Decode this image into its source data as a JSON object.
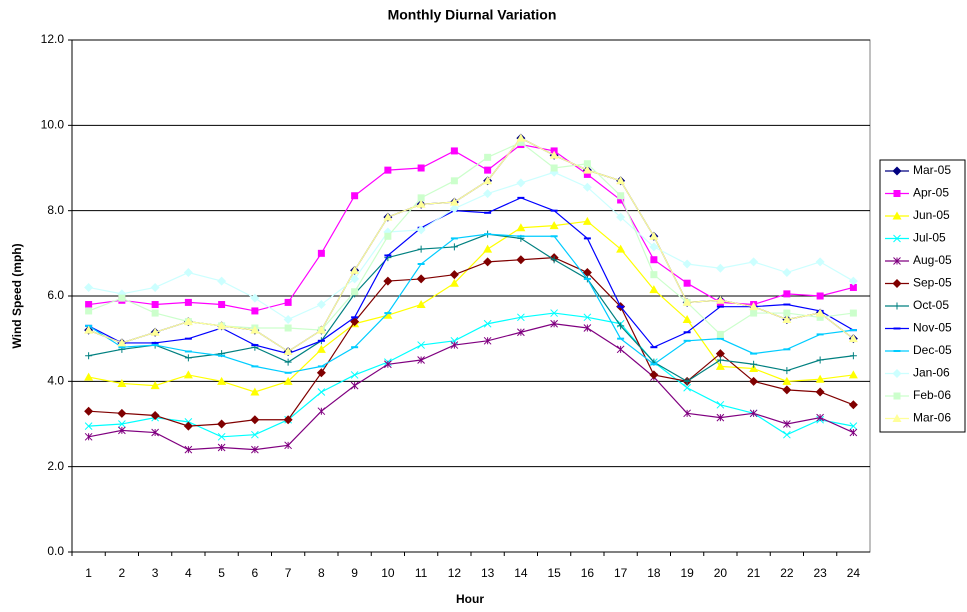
{
  "chart_data": {
    "type": "line",
    "title": "Monthly Diurnal Variation",
    "x_label": "Hour",
    "y_label": "Wind Speed (mph)",
    "categories": [
      "1",
      "2",
      "3",
      "4",
      "5",
      "6",
      "7",
      "8",
      "9",
      "10",
      "11",
      "12",
      "13",
      "14",
      "15",
      "16",
      "17",
      "18",
      "19",
      "20",
      "21",
      "22",
      "23",
      "24"
    ],
    "ylim": [
      0,
      12
    ],
    "yticks": [
      {
        "value": 0,
        "label": "0.0"
      },
      {
        "value": 2,
        "label": "2.0"
      },
      {
        "value": 4,
        "label": "4.0"
      },
      {
        "value": 6,
        "label": "6.0"
      },
      {
        "value": 8,
        "label": "8.0"
      },
      {
        "value": 10,
        "label": "10.0"
      },
      {
        "value": 12,
        "label": "12.0"
      }
    ],
    "grid": true,
    "legend": "right",
    "series": [
      {
        "name": "Mar-05",
        "color": "#000080",
        "marker": "diamond",
        "values": [
          5.2,
          4.9,
          5.15,
          5.4,
          5.3,
          5.2,
          4.7,
          5.2,
          6.6,
          7.85,
          8.15,
          8.2,
          8.7,
          9.7,
          9.3,
          8.95,
          8.7,
          7.4,
          5.85,
          5.9,
          5.75,
          5.45,
          5.6,
          5.0
        ]
      },
      {
        "name": "Apr-05",
        "color": "#ff00ff",
        "marker": "square",
        "values": [
          5.8,
          5.9,
          5.8,
          5.85,
          5.8,
          5.65,
          5.85,
          7.0,
          8.35,
          8.95,
          9.0,
          9.4,
          8.95,
          9.55,
          9.4,
          8.85,
          8.25,
          6.85,
          6.3,
          5.85,
          5.8,
          6.05,
          6.0,
          6.2
        ]
      },
      {
        "name": "Jun-05",
        "color": "#ffff00",
        "marker": "triangle",
        "values": [
          4.1,
          3.95,
          3.9,
          4.15,
          4.0,
          3.75,
          4.0,
          4.75,
          5.35,
          5.55,
          5.8,
          6.3,
          7.1,
          7.6,
          7.65,
          7.75,
          7.1,
          6.15,
          5.45,
          4.35,
          4.3,
          4.0,
          4.05,
          4.15
        ]
      },
      {
        "name": "Jul-05",
        "color": "#00ffff",
        "marker": "x",
        "values": [
          2.95,
          3.0,
          3.15,
          3.05,
          2.7,
          2.75,
          3.1,
          3.75,
          4.15,
          4.45,
          4.85,
          4.95,
          5.35,
          5.5,
          5.6,
          5.5,
          5.35,
          4.45,
          3.85,
          3.45,
          3.25,
          2.75,
          3.1,
          2.95
        ]
      },
      {
        "name": "Aug-05",
        "color": "#800080",
        "marker": "star",
        "values": [
          2.7,
          2.85,
          2.8,
          2.4,
          2.45,
          2.4,
          2.5,
          3.3,
          3.9,
          4.4,
          4.5,
          4.85,
          4.95,
          5.15,
          5.35,
          5.25,
          4.75,
          4.1,
          3.25,
          3.15,
          3.25,
          3.0,
          3.15,
          2.8
        ]
      },
      {
        "name": "Sep-05",
        "color": "#800000",
        "marker": "diamond",
        "values": [
          3.3,
          3.25,
          3.2,
          2.95,
          3.0,
          3.1,
          3.1,
          4.2,
          5.4,
          6.35,
          6.4,
          6.5,
          6.8,
          6.85,
          6.9,
          6.55,
          5.75,
          4.15,
          4.0,
          4.65,
          4.0,
          3.8,
          3.75,
          3.45
        ]
      },
      {
        "name": "Oct-05",
        "color": "#008080",
        "marker": "plus",
        "values": [
          4.6,
          4.75,
          4.85,
          4.55,
          4.65,
          4.8,
          4.45,
          4.95,
          6.05,
          6.9,
          7.1,
          7.15,
          7.45,
          7.35,
          6.85,
          6.4,
          5.3,
          4.45,
          4.0,
          4.5,
          4.4,
          4.25,
          4.5,
          4.6
        ]
      },
      {
        "name": "Nov-05",
        "color": "#0000ff",
        "marker": "dash",
        "values": [
          5.3,
          4.9,
          4.9,
          5.0,
          5.25,
          4.85,
          4.65,
          4.95,
          5.5,
          6.95,
          7.6,
          8.0,
          7.95,
          8.3,
          8.0,
          7.35,
          5.75,
          4.8,
          5.15,
          5.75,
          5.75,
          5.8,
          5.65,
          5.2
        ]
      },
      {
        "name": "Dec-05",
        "color": "#00ccff",
        "marker": "dash",
        "values": [
          5.3,
          4.8,
          4.85,
          4.7,
          4.6,
          4.35,
          4.2,
          4.35,
          4.8,
          5.6,
          6.75,
          7.35,
          7.45,
          7.4,
          7.4,
          6.4,
          5.0,
          4.4,
          4.95,
          5.0,
          4.65,
          4.75,
          5.1,
          5.2
        ]
      },
      {
        "name": "Jan-06",
        "color": "#ccffff",
        "marker": "diamond",
        "values": [
          6.2,
          6.05,
          6.2,
          6.55,
          6.35,
          5.95,
          5.45,
          5.8,
          6.4,
          7.5,
          7.55,
          8.05,
          8.4,
          8.65,
          8.9,
          8.55,
          7.85,
          7.15,
          6.75,
          6.65,
          6.8,
          6.55,
          6.8,
          6.35
        ]
      },
      {
        "name": "Feb-06",
        "color": "#ccffcc",
        "marker": "square",
        "values": [
          5.65,
          5.95,
          5.6,
          5.4,
          5.3,
          5.25,
          5.25,
          5.2,
          6.1,
          7.4,
          8.3,
          8.7,
          9.25,
          9.6,
          9.0,
          9.1,
          8.35,
          6.5,
          5.85,
          5.1,
          5.6,
          5.6,
          5.5,
          5.6
        ]
      },
      {
        "name": "Mar-06",
        "color": "#ffff99",
        "marker": "triangle",
        "values": [
          5.2,
          4.9,
          5.15,
          5.4,
          5.3,
          5.2,
          4.7,
          5.2,
          6.6,
          7.85,
          8.15,
          8.2,
          8.7,
          9.7,
          9.3,
          8.95,
          8.7,
          7.4,
          5.85,
          5.9,
          5.75,
          5.45,
          5.6,
          5.0
        ]
      }
    ]
  }
}
